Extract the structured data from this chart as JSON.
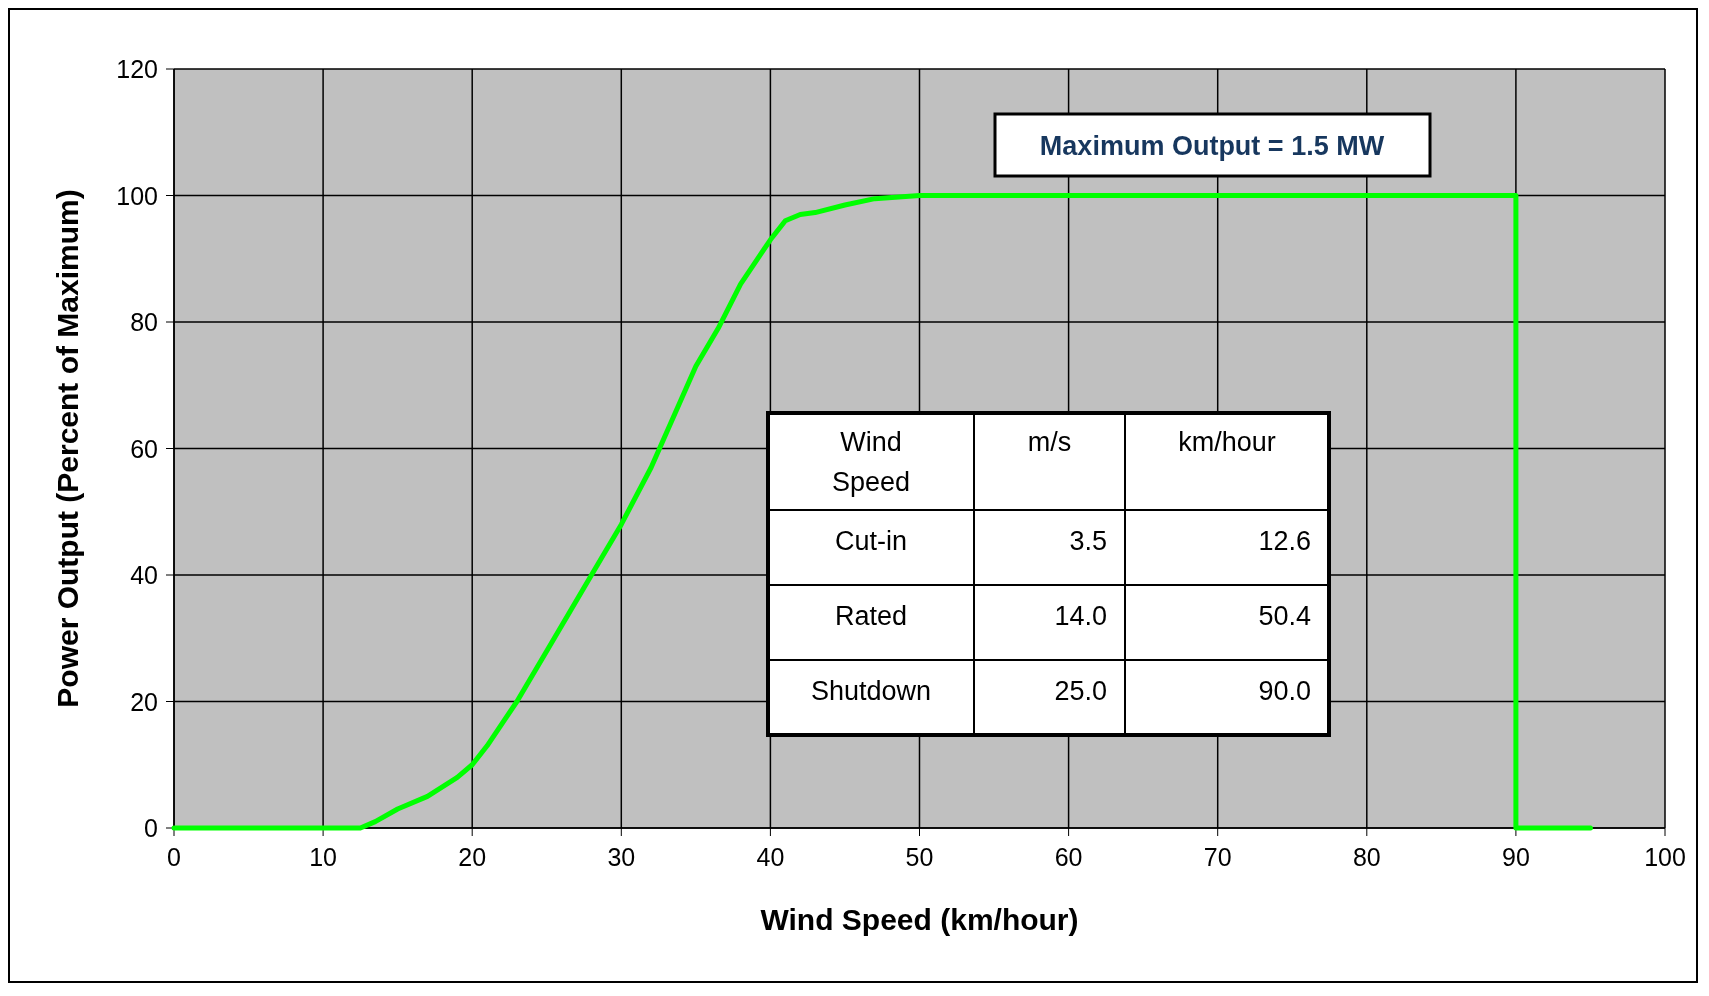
{
  "chart_data": {
    "type": "line",
    "xlabel": "Wind Speed (km/hour)",
    "ylabel": "Power Output (Percent of Maximum)",
    "xlim": [
      0,
      100
    ],
    "xticks": [
      0,
      10,
      20,
      30,
      40,
      50,
      60,
      70,
      80,
      90,
      100
    ],
    "ylim": [
      0,
      120
    ],
    "yticks": [
      0,
      20,
      40,
      60,
      80,
      100,
      120
    ],
    "grid": true,
    "line_style": "solid",
    "marker": "none",
    "series": [
      {
        "color": "#00ff00",
        "x": [
          0,
          12.5,
          13.5,
          15,
          17,
          19,
          20,
          21,
          23,
          25,
          28,
          30,
          32,
          35,
          36.5,
          38,
          40,
          41,
          42,
          43,
          45,
          47,
          50,
          90,
          90,
          95
        ],
        "values": [
          0,
          0,
          1,
          3,
          5,
          8,
          10,
          13,
          20,
          28,
          40,
          48,
          57,
          73,
          79,
          86,
          93,
          96,
          97,
          97.3,
          98.5,
          99.5,
          100,
          100,
          0,
          0
        ]
      }
    ],
    "annotations": [
      "Maximum Output = 1.5 MW",
      "Wind Speed",
      "m/s",
      "km/hour",
      "Cut-in",
      "3.5",
      "12.6",
      "Rated",
      "14.0",
      "50.4",
      "Shutdown",
      "25.0",
      "90.0"
    ]
  }
}
